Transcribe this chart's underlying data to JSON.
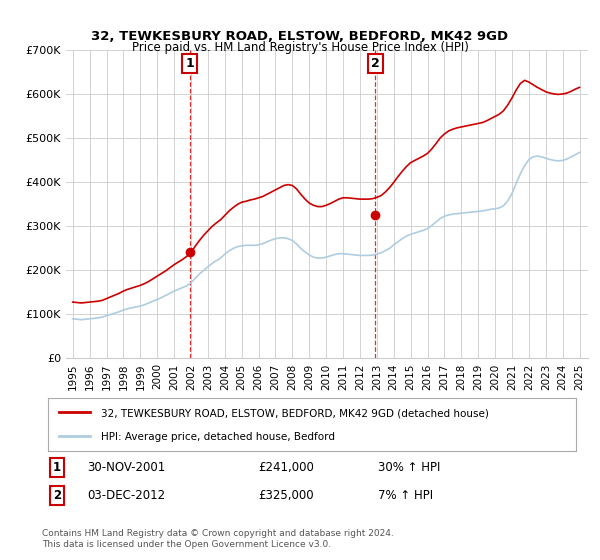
{
  "title": "32, TEWKESBURY ROAD, ELSTOW, BEDFORD, MK42 9GD",
  "subtitle": "Price paid vs. HM Land Registry's House Price Index (HPI)",
  "legend_line1": "32, TEWKESBURY ROAD, ELSTOW, BEDFORD, MK42 9GD (detached house)",
  "legend_line2": "HPI: Average price, detached house, Bedford",
  "annotation1_label": "1",
  "annotation1_date": "30-NOV-2001",
  "annotation1_price": "£241,000",
  "annotation1_hpi": "30% ↑ HPI",
  "annotation2_label": "2",
  "annotation2_date": "03-DEC-2012",
  "annotation2_price": "£325,000",
  "annotation2_hpi": "7% ↑ HPI",
  "footnote": "Contains HM Land Registry data © Crown copyright and database right 2024.\nThis data is licensed under the Open Government Licence v3.0.",
  "sale1_year": 2001.92,
  "sale1_price": 241000,
  "sale2_year": 2012.92,
  "sale2_price": 325000,
  "hpi_color": "#aecde0",
  "price_color": "#cc0000",
  "vline_color": "#cc0000",
  "grid_color": "#cccccc",
  "bg_color": "#ffffff",
  "ylim": [
    0,
    700000
  ],
  "xlim_start": 1994.6,
  "xlim_end": 2025.5,
  "yticks": [
    0,
    100000,
    200000,
    300000,
    400000,
    500000,
    600000,
    700000
  ],
  "years_hpi": [
    1995.0,
    1995.25,
    1995.5,
    1995.75,
    1996.0,
    1996.25,
    1996.5,
    1996.75,
    1997.0,
    1997.25,
    1997.5,
    1997.75,
    1998.0,
    1998.25,
    1998.5,
    1998.75,
    1999.0,
    1999.25,
    1999.5,
    1999.75,
    2000.0,
    2000.25,
    2000.5,
    2000.75,
    2001.0,
    2001.25,
    2001.5,
    2001.75,
    2002.0,
    2002.25,
    2002.5,
    2002.75,
    2003.0,
    2003.25,
    2003.5,
    2003.75,
    2004.0,
    2004.25,
    2004.5,
    2004.75,
    2005.0,
    2005.25,
    2005.5,
    2005.75,
    2006.0,
    2006.25,
    2006.5,
    2006.75,
    2007.0,
    2007.25,
    2007.5,
    2007.75,
    2008.0,
    2008.25,
    2008.5,
    2008.75,
    2009.0,
    2009.25,
    2009.5,
    2009.75,
    2010.0,
    2010.25,
    2010.5,
    2010.75,
    2011.0,
    2011.25,
    2011.5,
    2011.75,
    2012.0,
    2012.25,
    2012.5,
    2012.75,
    2013.0,
    2013.25,
    2013.5,
    2013.75,
    2014.0,
    2014.25,
    2014.5,
    2014.75,
    2015.0,
    2015.25,
    2015.5,
    2015.75,
    2016.0,
    2016.25,
    2016.5,
    2016.75,
    2017.0,
    2017.25,
    2017.5,
    2017.75,
    2018.0,
    2018.25,
    2018.5,
    2018.75,
    2019.0,
    2019.25,
    2019.5,
    2019.75,
    2020.0,
    2020.25,
    2020.5,
    2020.75,
    2021.0,
    2021.25,
    2021.5,
    2021.75,
    2022.0,
    2022.25,
    2022.5,
    2022.75,
    2023.0,
    2023.25,
    2023.5,
    2023.75,
    2024.0,
    2024.25,
    2024.5,
    2024.75,
    2025.0
  ],
  "hpi_values": [
    90000,
    89000,
    88000,
    89000,
    90000,
    91000,
    92000,
    94000,
    97000,
    100000,
    103000,
    106000,
    110000,
    113000,
    115000,
    117000,
    119000,
    122000,
    126000,
    130000,
    134000,
    138000,
    143000,
    148000,
    153000,
    157000,
    161000,
    165000,
    172000,
    182000,
    192000,
    200000,
    208000,
    216000,
    222000,
    228000,
    237000,
    244000,
    250000,
    254000,
    256000,
    257000,
    257000,
    257000,
    258000,
    261000,
    265000,
    269000,
    272000,
    274000,
    274000,
    272000,
    268000,
    260000,
    250000,
    242000,
    235000,
    230000,
    228000,
    228000,
    230000,
    233000,
    236000,
    238000,
    238000,
    237000,
    236000,
    235000,
    234000,
    234000,
    234000,
    235000,
    237000,
    240000,
    245000,
    250000,
    258000,
    265000,
    272000,
    278000,
    282000,
    285000,
    288000,
    291000,
    295000,
    302000,
    310000,
    318000,
    323000,
    326000,
    328000,
    329000,
    330000,
    331000,
    332000,
    333000,
    334000,
    335000,
    337000,
    339000,
    340000,
    342000,
    347000,
    358000,
    375000,
    398000,
    420000,
    438000,
    452000,
    458000,
    460000,
    458000,
    455000,
    452000,
    450000,
    449000,
    450000,
    453000,
    458000,
    463000,
    468000
  ],
  "price_values": [
    128000,
    127000,
    126000,
    127000,
    128000,
    129000,
    130000,
    132000,
    136000,
    140000,
    144000,
    148000,
    153000,
    157000,
    160000,
    163000,
    166000,
    170000,
    175000,
    181000,
    187000,
    193000,
    199000,
    206000,
    213000,
    219000,
    225000,
    232000,
    241000,
    255000,
    268000,
    280000,
    290000,
    300000,
    308000,
    315000,
    325000,
    335000,
    343000,
    350000,
    355000,
    357000,
    360000,
    362000,
    365000,
    368000,
    373000,
    378000,
    383000,
    388000,
    393000,
    395000,
    393000,
    385000,
    373000,
    362000,
    353000,
    348000,
    345000,
    345000,
    348000,
    352000,
    357000,
    362000,
    365000,
    365000,
    364000,
    363000,
    362000,
    362000,
    362000,
    363000,
    366000,
    370000,
    378000,
    388000,
    400000,
    413000,
    425000,
    436000,
    445000,
    450000,
    455000,
    460000,
    466000,
    476000,
    488000,
    501000,
    510000,
    517000,
    521000,
    524000,
    526000,
    528000,
    530000,
    532000,
    534000,
    536000,
    540000,
    545000,
    550000,
    555000,
    563000,
    576000,
    592000,
    610000,
    625000,
    632000,
    628000,
    622000,
    616000,
    611000,
    606000,
    603000,
    601000,
    600000,
    601000,
    603000,
    607000,
    612000,
    616000
  ]
}
